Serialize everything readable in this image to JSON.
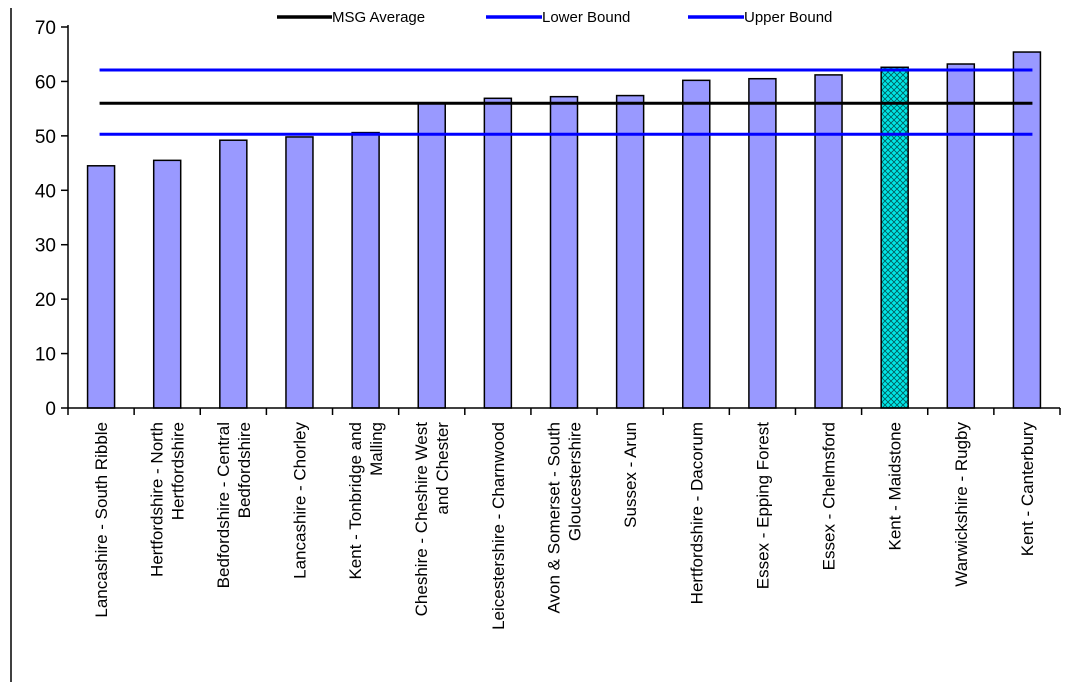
{
  "chart_data": {
    "type": "bar",
    "title": "",
    "xlabel": "",
    "ylabel": "",
    "ylim": [
      0,
      70
    ],
    "yticks": [
      0,
      10,
      20,
      30,
      40,
      50,
      60,
      70
    ],
    "grid": false,
    "legend_position": "top",
    "categories": [
      "Lancashire - South Ribble",
      "Hertfordshire - North Hertfordshire",
      "Bedfordshire - Central Bedfordshire",
      "Lancashire - Chorley",
      "Kent - Tonbridge and Malling",
      "Cheshire - Cheshire West and Chester",
      "Leicestershire - Charnwood",
      "Avon & Somerset - South Gloucestershire",
      "Sussex - Arun",
      "Hertfordshire - Dacorum",
      "Essex - Epping Forest",
      "Essex - Chelmsford",
      "Kent - Maidstone",
      "Warwickshire - Rugby",
      "Kent - Canterbury"
    ],
    "category_lines": [
      [
        "Lancashire - South Ribble"
      ],
      [
        "Hertfordshire - North",
        "Hertfordshire"
      ],
      [
        "Bedfordshire - Central",
        "Bedfordshire"
      ],
      [
        "Lancashire - Chorley"
      ],
      [
        "Kent - Tonbridge and",
        "Malling"
      ],
      [
        "Cheshire - Cheshire West",
        "and Chester"
      ],
      [
        "Leicestershire - Charnwood"
      ],
      [
        "Avon & Somerset - South",
        "Gloucestershire"
      ],
      [
        "Sussex - Arun"
      ],
      [
        "Hertfordshire - Dacorum"
      ],
      [
        "Essex - Epping Forest"
      ],
      [
        "Essex - Chelmsford"
      ],
      [
        "Kent - Maidstone"
      ],
      [
        "Warwickshire - Rugby"
      ],
      [
        "Kent - Canterbury"
      ]
    ],
    "values": [
      44.5,
      45.5,
      49.2,
      49.8,
      50.6,
      56.0,
      56.9,
      57.2,
      57.4,
      60.2,
      60.5,
      61.2,
      62.6,
      63.2,
      65.4
    ],
    "highlight_index": 12,
    "bar_color": "#9999ff",
    "highlight_color": "#00e6e6",
    "reference_lines": [
      {
        "name": "MSG Average",
        "value": 56.0,
        "color": "#000000"
      },
      {
        "name": "Lower Bound",
        "value": 50.3,
        "color": "#0000ff"
      },
      {
        "name": "Upper Bound",
        "value": 62.1,
        "color": "#0000ff"
      }
    ]
  }
}
